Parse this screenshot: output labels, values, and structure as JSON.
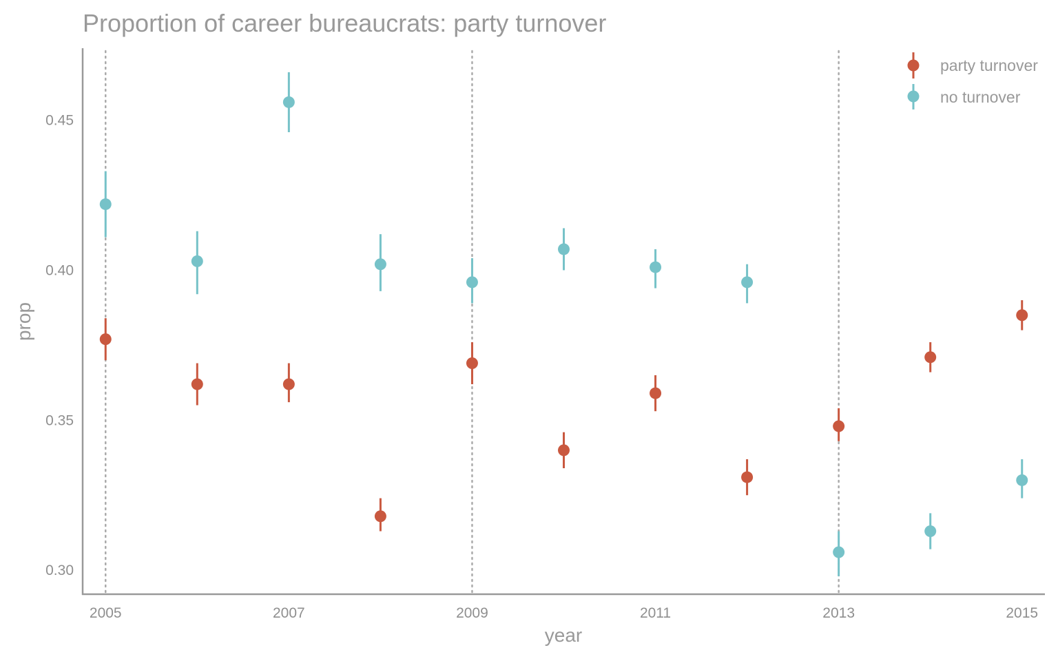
{
  "chart_data": {
    "type": "scatter",
    "subtype": "point with error bars",
    "title": "Proportion of career bureaucrats: party turnover",
    "xlabel": "year",
    "ylabel": "prop",
    "xlim": [
      2004.75,
      2015.25
    ],
    "ylim": [
      0.292,
      0.474
    ],
    "x_ticks": [
      2005,
      2007,
      2009,
      2011,
      2013,
      2015
    ],
    "y_ticks": [
      0.3,
      0.35,
      0.4,
      0.45
    ],
    "y_tick_labels": [
      "0.30",
      "0.35",
      "0.40",
      "0.45"
    ],
    "vertical_reference_lines": [
      2005,
      2009,
      2013
    ],
    "grid": false,
    "legend_position": "top-right",
    "series": [
      {
        "name": "party turnover",
        "color": "#c9583f",
        "points": [
          {
            "x": 2005,
            "y": 0.377,
            "lo": 0.37,
            "hi": 0.384
          },
          {
            "x": 2006,
            "y": 0.362,
            "lo": 0.355,
            "hi": 0.369
          },
          {
            "x": 2007,
            "y": 0.362,
            "lo": 0.356,
            "hi": 0.369
          },
          {
            "x": 2008,
            "y": 0.318,
            "lo": 0.313,
            "hi": 0.324
          },
          {
            "x": 2009,
            "y": 0.369,
            "lo": 0.362,
            "hi": 0.376
          },
          {
            "x": 2010,
            "y": 0.34,
            "lo": 0.334,
            "hi": 0.346
          },
          {
            "x": 2011,
            "y": 0.359,
            "lo": 0.353,
            "hi": 0.365
          },
          {
            "x": 2012,
            "y": 0.331,
            "lo": 0.325,
            "hi": 0.337
          },
          {
            "x": 2013,
            "y": 0.348,
            "lo": 0.343,
            "hi": 0.354
          },
          {
            "x": 2014,
            "y": 0.371,
            "lo": 0.366,
            "hi": 0.376
          },
          {
            "x": 2015,
            "y": 0.385,
            "lo": 0.38,
            "hi": 0.39
          }
        ]
      },
      {
        "name": "no turnover",
        "color": "#76c2c8",
        "points": [
          {
            "x": 2005,
            "y": 0.422,
            "lo": 0.411,
            "hi": 0.433
          },
          {
            "x": 2006,
            "y": 0.403,
            "lo": 0.392,
            "hi": 0.413
          },
          {
            "x": 2007,
            "y": 0.456,
            "lo": 0.446,
            "hi": 0.466
          },
          {
            "x": 2008,
            "y": 0.402,
            "lo": 0.393,
            "hi": 0.412
          },
          {
            "x": 2009,
            "y": 0.396,
            "lo": 0.389,
            "hi": 0.404
          },
          {
            "x": 2010,
            "y": 0.407,
            "lo": 0.4,
            "hi": 0.414
          },
          {
            "x": 2011,
            "y": 0.401,
            "lo": 0.394,
            "hi": 0.407
          },
          {
            "x": 2012,
            "y": 0.396,
            "lo": 0.389,
            "hi": 0.402
          },
          {
            "x": 2013,
            "y": 0.306,
            "lo": 0.298,
            "hi": 0.313
          },
          {
            "x": 2014,
            "y": 0.313,
            "lo": 0.307,
            "hi": 0.319
          },
          {
            "x": 2015,
            "y": 0.33,
            "lo": 0.324,
            "hi": 0.337
          }
        ]
      }
    ],
    "colors": {
      "axis": "#999999",
      "reference_line": "#aaaaaa"
    }
  }
}
